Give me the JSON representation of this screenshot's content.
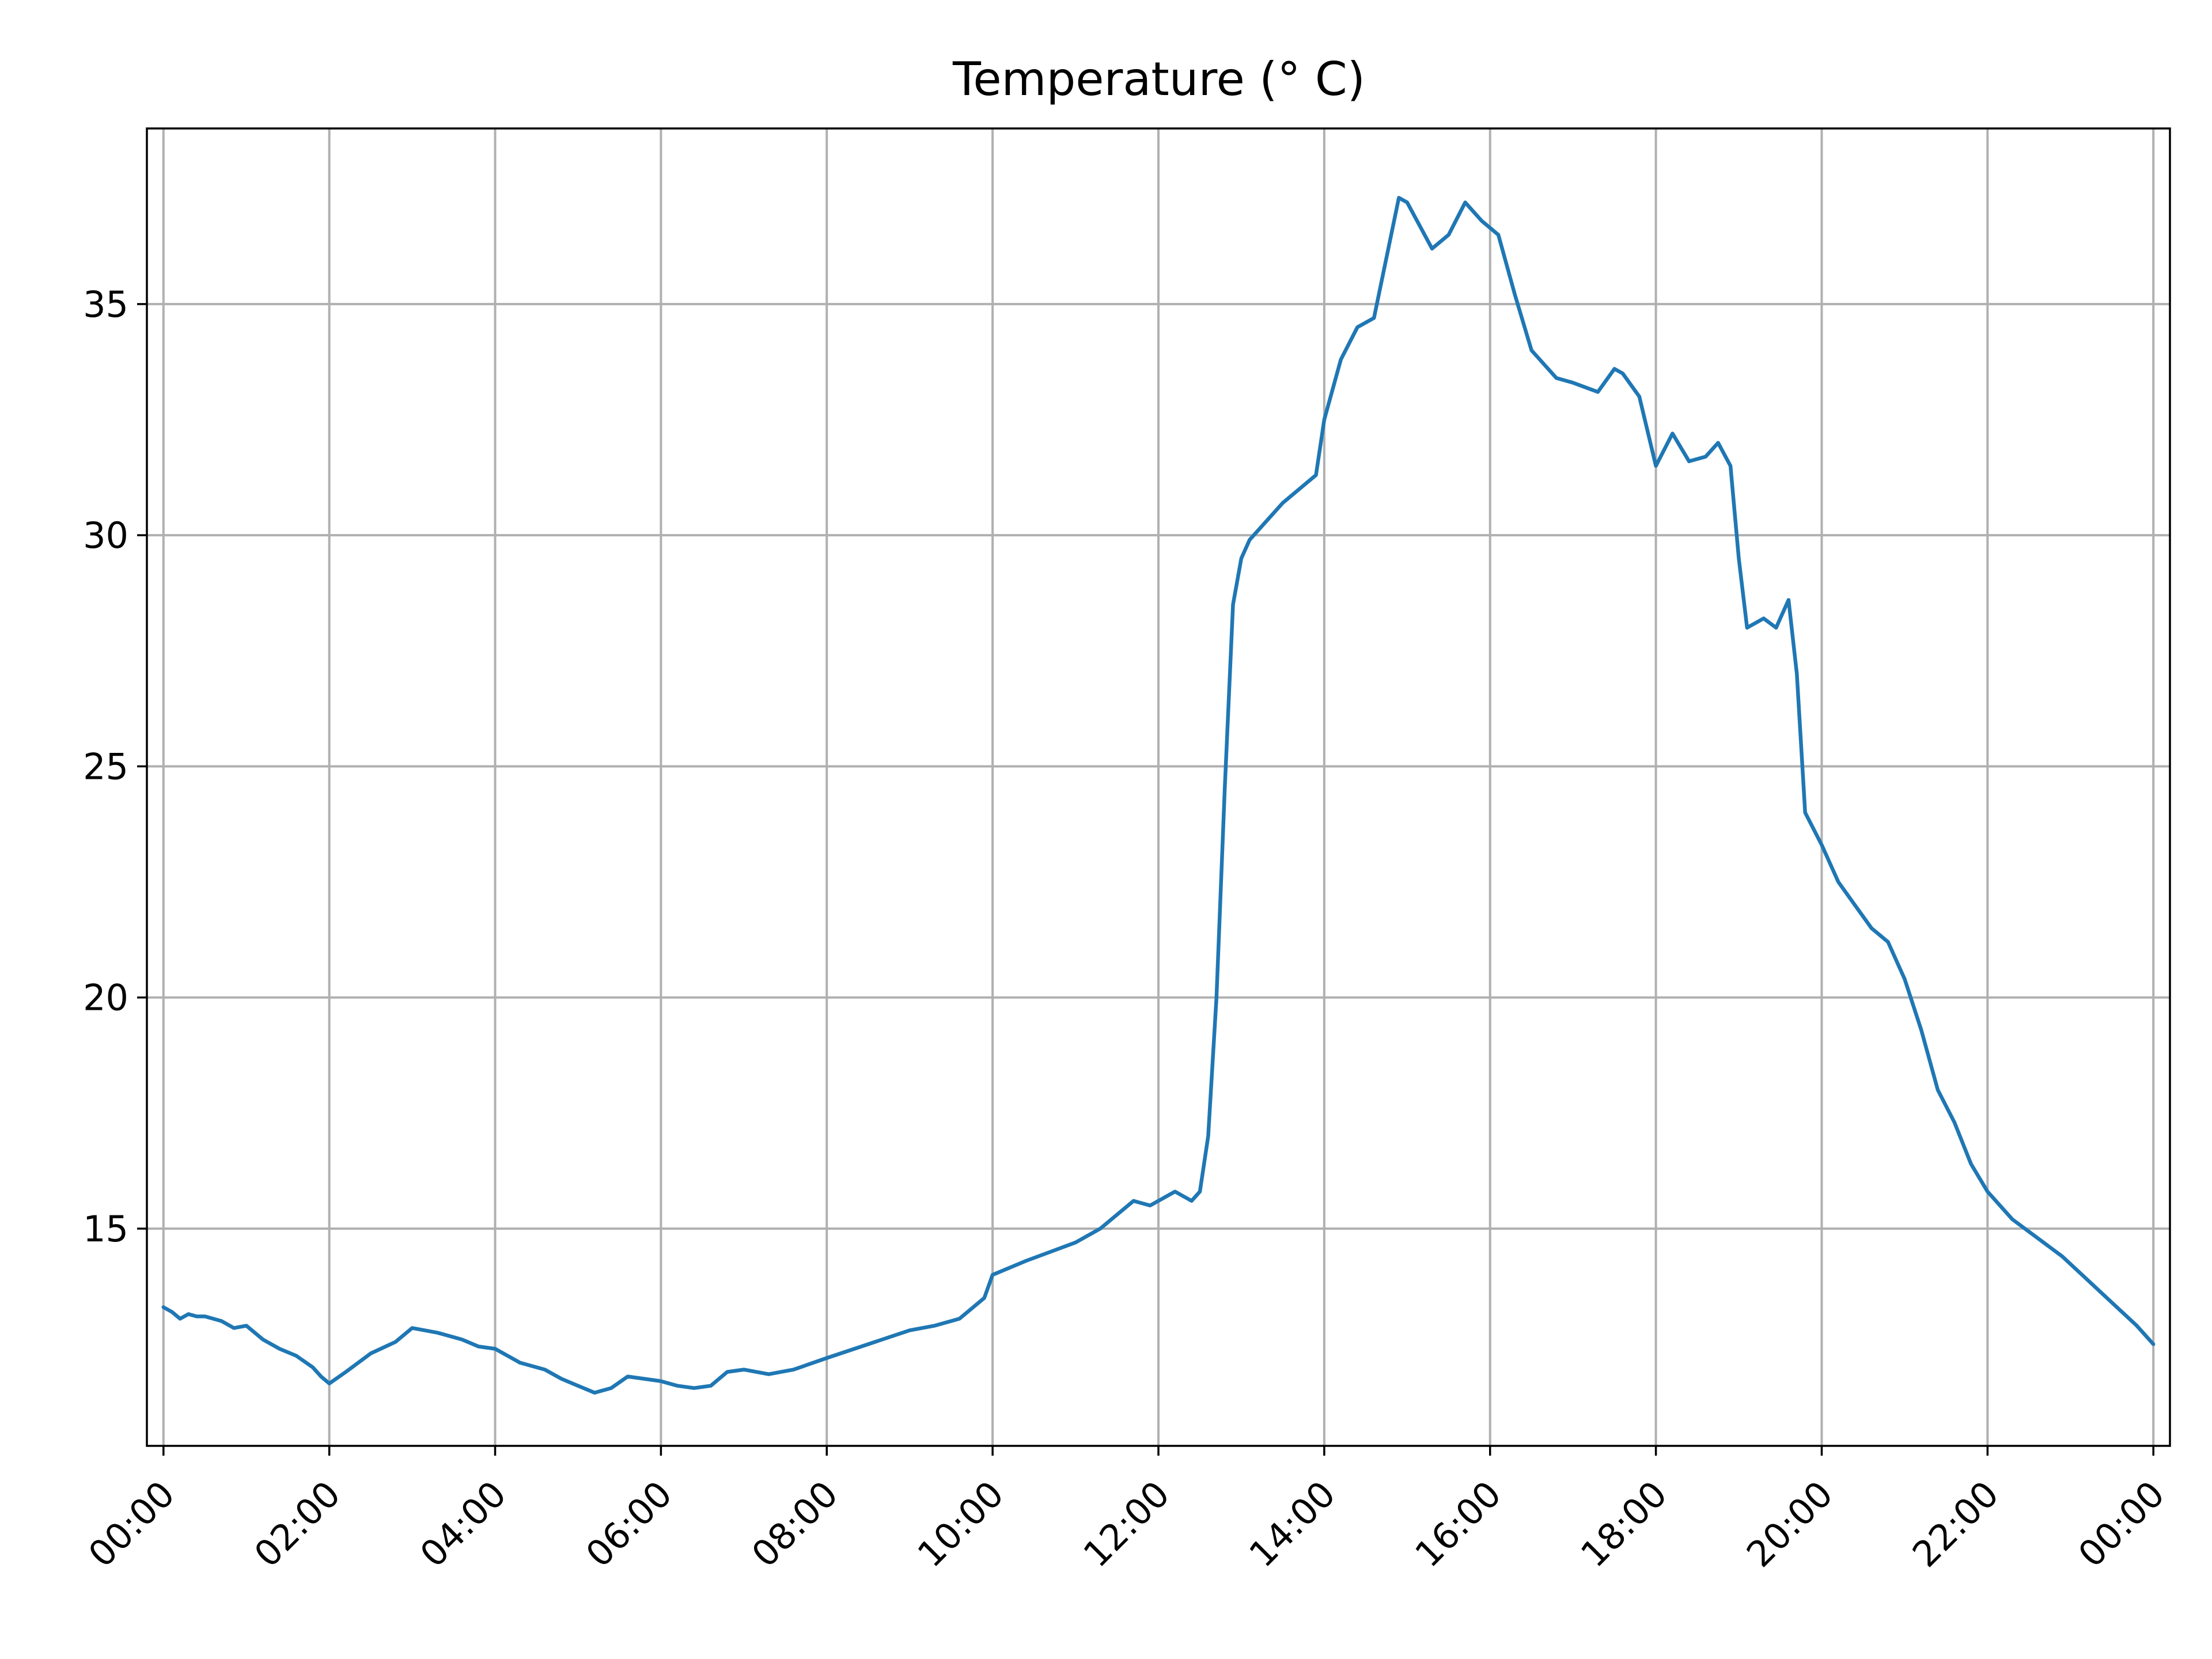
{
  "chart_data": {
    "type": "line",
    "title": "Temperature (° C)",
    "xlabel": "",
    "ylabel": "",
    "x_unit": "hours since 00:00",
    "xlim": [
      -0.2,
      24.2
    ],
    "ylim": [
      10.3,
      38.8
    ],
    "grid": true,
    "legend": "none",
    "x_ticks": [
      {
        "value": 0,
        "label": "00:00"
      },
      {
        "value": 2,
        "label": "02:00"
      },
      {
        "value": 4,
        "label": "04:00"
      },
      {
        "value": 6,
        "label": "06:00"
      },
      {
        "value": 8,
        "label": "08:00"
      },
      {
        "value": 10,
        "label": "10:00"
      },
      {
        "value": 12,
        "label": "12:00"
      },
      {
        "value": 14,
        "label": "14:00"
      },
      {
        "value": 16,
        "label": "16:00"
      },
      {
        "value": 18,
        "label": "18:00"
      },
      {
        "value": 20,
        "label": "20:00"
      },
      {
        "value": 22,
        "label": "22:00"
      },
      {
        "value": 24,
        "label": "00:00"
      }
    ],
    "y_ticks": [
      {
        "value": 15,
        "label": "15"
      },
      {
        "value": 20,
        "label": "20"
      },
      {
        "value": 25,
        "label": "25"
      },
      {
        "value": 30,
        "label": "30"
      },
      {
        "value": 35,
        "label": "35"
      }
    ],
    "series": [
      {
        "color": "#1f77b4",
        "x": [
          0,
          0.1,
          0.2,
          0.3,
          0.4,
          0.5,
          0.7,
          0.85,
          1.0,
          1.2,
          1.4,
          1.6,
          1.8,
          1.9,
          2.0,
          2.2,
          2.5,
          2.8,
          3.0,
          3.3,
          3.6,
          3.8,
          4.0,
          4.3,
          4.6,
          4.8,
          5.0,
          5.2,
          5.4,
          5.6,
          5.8,
          6.0,
          6.2,
          6.4,
          6.6,
          6.8,
          7.0,
          7.3,
          7.6,
          8.0,
          8.5,
          9.0,
          9.3,
          9.6,
          9.9,
          10.0,
          10.4,
          10.7,
          11.0,
          11.3,
          11.5,
          11.7,
          11.9,
          12.0,
          12.2,
          12.4,
          12.5,
          12.6,
          12.7,
          12.8,
          12.9,
          13.0,
          13.1,
          13.3,
          13.5,
          13.7,
          13.9,
          14.0,
          14.2,
          14.4,
          14.6,
          14.75,
          14.9,
          15.0,
          15.3,
          15.5,
          15.7,
          15.9,
          16.1,
          16.3,
          16.5,
          16.8,
          17.0,
          17.3,
          17.5,
          17.6,
          17.8,
          18.0,
          18.2,
          18.4,
          18.6,
          18.75,
          18.9,
          19.0,
          19.1,
          19.3,
          19.45,
          19.6,
          19.7,
          19.8,
          20.0,
          20.2,
          20.4,
          20.6,
          20.8,
          21.0,
          21.2,
          21.4,
          21.6,
          21.8,
          22.0,
          22.3,
          22.6,
          22.9,
          23.2,
          23.5,
          23.8,
          24.0
        ],
        "values": [
          13.3,
          13.2,
          13.05,
          13.15,
          13.1,
          13.1,
          13.0,
          12.85,
          12.9,
          12.6,
          12.4,
          12.25,
          12.0,
          11.8,
          11.65,
          11.9,
          12.3,
          12.55,
          12.85,
          12.75,
          12.6,
          12.45,
          12.4,
          12.1,
          11.95,
          11.75,
          11.6,
          11.45,
          11.55,
          11.8,
          11.75,
          11.7,
          11.6,
          11.55,
          11.6,
          11.9,
          11.95,
          11.85,
          11.95,
          12.2,
          12.5,
          12.8,
          12.9,
          13.05,
          13.5,
          14.0,
          14.3,
          14.5,
          14.7,
          15.0,
          15.3,
          15.6,
          15.5,
          15.6,
          15.8,
          15.6,
          15.8,
          17.0,
          20.0,
          24.5,
          28.5,
          29.5,
          29.9,
          30.3,
          30.7,
          31.0,
          31.3,
          32.5,
          33.8,
          34.5,
          34.7,
          36.0,
          37.3,
          37.2,
          36.2,
          36.5,
          37.2,
          36.8,
          36.5,
          35.2,
          34.0,
          33.4,
          33.3,
          33.1,
          33.6,
          33.5,
          33.0,
          31.5,
          32.2,
          31.6,
          31.7,
          32.0,
          31.5,
          29.5,
          28.0,
          28.2,
          28.0,
          28.6,
          27.0,
          24.0,
          23.3,
          22.5,
          22.0,
          21.5,
          21.2,
          20.4,
          19.3,
          18.0,
          17.3,
          16.4,
          15.8,
          15.2,
          14.8,
          14.4,
          13.9,
          13.4,
          12.9,
          12.5
        ]
      }
    ]
  }
}
